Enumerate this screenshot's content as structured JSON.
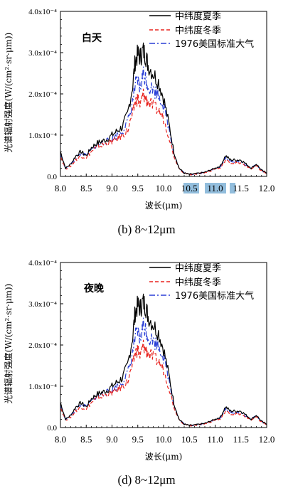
{
  "chart_data": [
    {
      "type": "line",
      "caption": "(b) 8~12μm",
      "annotation": "白天",
      "xlabel": "波长(μm)",
      "ylabel": "光谱辐射强度(W/(cm²·sr·μm))",
      "xlim": [
        8.0,
        12.0
      ],
      "ylim": [
        0,
        0.0004
      ],
      "xticks": [
        "8.0",
        "8.5",
        "9.0",
        "9.5",
        "10.0",
        "10.5",
        "11.0",
        "11.5",
        "12.0"
      ],
      "yticks": [
        "0.0",
        "1.0x10⁻⁴",
        "2.0x10⁻⁴",
        "3.0x10⁻⁴",
        "4.0x10⁻⁴"
      ],
      "legend_position": "top-right",
      "series": [
        {
          "name": "中纬度夏季",
          "color": "#000000",
          "dash": "solid",
          "x": [
            8.0,
            8.1,
            8.2,
            8.3,
            8.4,
            8.5,
            8.6,
            8.7,
            8.8,
            8.9,
            9.0,
            9.1,
            9.2,
            9.3,
            9.4,
            9.45,
            9.5,
            9.55,
            9.6,
            9.65,
            9.7,
            9.8,
            9.9,
            10.0,
            10.1,
            10.2,
            10.3,
            10.4,
            10.5,
            10.6,
            10.7,
            10.8,
            10.9,
            11.0,
            11.1,
            11.2,
            11.3,
            11.4,
            11.5,
            11.6,
            11.7,
            11.8,
            11.9,
            12.0
          ],
          "values": [
            6e-05,
            2e-05,
            3e-05,
            5e-05,
            6e-05,
            5e-05,
            7e-05,
            8e-05,
            8.5e-05,
            9e-05,
            0.0001,
            0.00011,
            0.00012,
            0.00015,
            0.00022,
            0.00028,
            0.000295,
            0.00029,
            0.000305,
            0.000295,
            0.00027,
            0.00025,
            0.00023,
            0.00019,
            0.00013,
            6e-05,
            2e-05,
            8e-06,
            5e-06,
            6e-06,
            8e-06,
            1e-05,
            1.5e-05,
            2e-05,
            2.5e-05,
            5e-05,
            4e-05,
            4e-05,
            4e-05,
            3e-05,
            2e-05,
            3e-05,
            1.5e-05,
            8e-06
          ]
        },
        {
          "name": "中纬度冬季",
          "color": "#e8231f",
          "dash": "dashed",
          "x": [
            8.0,
            8.1,
            8.2,
            8.3,
            8.4,
            8.5,
            8.6,
            8.7,
            8.8,
            8.9,
            9.0,
            9.1,
            9.2,
            9.3,
            9.4,
            9.45,
            9.5,
            9.55,
            9.6,
            9.65,
            9.7,
            9.8,
            9.9,
            10.0,
            10.1,
            10.2,
            10.3,
            10.4,
            10.5,
            10.6,
            10.7,
            10.8,
            10.9,
            11.0,
            11.1,
            11.2,
            11.3,
            11.4,
            11.5,
            11.6,
            11.7,
            11.8,
            11.9,
            12.0
          ],
          "values": [
            5e-05,
            1.8e-05,
            2.5e-05,
            4e-05,
            5e-05,
            4.5e-05,
            6e-05,
            7e-05,
            7.5e-05,
            8e-05,
            8.5e-05,
            9e-05,
            0.0001,
            0.00011,
            0.00015,
            0.00018,
            0.00019,
            0.00017,
            0.0002,
            0.00019,
            0.00018,
            0.00017,
            0.00016,
            0.00014,
            0.0001,
            5e-05,
            2e-05,
            7e-06,
            5e-06,
            5e-06,
            7e-06,
            9e-06,
            1.3e-05,
            1.8e-05,
            2e-05,
            4e-05,
            3.2e-05,
            3.3e-05,
            3.2e-05,
            2.5e-05,
            1.8e-05,
            2.5e-05,
            1.3e-05,
            7e-06
          ]
        },
        {
          "name": "1976美国标准大气",
          "color": "#2a3fd6",
          "dash": "dashdot",
          "x": [
            8.0,
            8.1,
            8.2,
            8.3,
            8.4,
            8.5,
            8.6,
            8.7,
            8.8,
            8.9,
            9.0,
            9.1,
            9.2,
            9.3,
            9.4,
            9.45,
            9.5,
            9.55,
            9.6,
            9.65,
            9.7,
            9.8,
            9.9,
            10.0,
            10.1,
            10.2,
            10.3,
            10.4,
            10.5,
            10.6,
            10.7,
            10.8,
            10.9,
            11.0,
            11.1,
            11.2,
            11.3,
            11.4,
            11.5,
            11.6,
            11.7,
            11.8,
            11.9,
            12.0
          ],
          "values": [
            5.5e-05,
            2e-05,
            2.8e-05,
            4.5e-05,
            5.5e-05,
            5e-05,
            6.5e-05,
            7.5e-05,
            8e-05,
            8.5e-05,
            9e-05,
            0.0001,
            0.00011,
            0.00013,
            0.00018,
            0.00022,
            0.00023,
            0.00021,
            0.00025,
            0.00024,
            0.00022,
            0.00021,
            0.0002,
            0.00017,
            0.00012,
            5.5e-05,
            2e-05,
            8e-06,
            5e-06,
            6e-06,
            8e-06,
            1e-05,
            1.4e-05,
            2e-05,
            2.2e-05,
            4.5e-05,
            3.6e-05,
            3.7e-05,
            3.6e-05,
            2.8e-05,
            2e-05,
            2.8e-05,
            1.4e-05,
            8e-06
          ]
        }
      ]
    },
    {
      "type": "line",
      "caption": "(d) 8~12μm",
      "annotation": "夜晚",
      "xlabel": "波长(μm)",
      "ylabel": "光谱辐射强度(W/(cm²·sr·μm))",
      "xlim": [
        8.0,
        12.0
      ],
      "ylim": [
        0,
        0.0004
      ],
      "xticks": [
        "8.0",
        "8.5",
        "9.0",
        "9.5",
        "10.0",
        "10.5",
        "11.0",
        "11.5",
        "12.0"
      ],
      "yticks": [
        "0.0",
        "1.0x10⁻⁴",
        "2.0x10⁻⁴",
        "3.0x10⁻⁴",
        "4.0x10⁻⁴"
      ],
      "legend_position": "top-right",
      "series": [
        {
          "name": "中纬度夏季",
          "color": "#000000",
          "dash": "solid",
          "x": [
            8.0,
            8.1,
            8.2,
            8.3,
            8.4,
            8.5,
            8.6,
            8.7,
            8.8,
            8.9,
            9.0,
            9.1,
            9.2,
            9.3,
            9.4,
            9.45,
            9.5,
            9.55,
            9.6,
            9.65,
            9.7,
            9.8,
            9.9,
            10.0,
            10.1,
            10.2,
            10.3,
            10.4,
            10.5,
            10.6,
            10.7,
            10.8,
            10.9,
            11.0,
            11.1,
            11.2,
            11.3,
            11.4,
            11.5,
            11.6,
            11.7,
            11.8,
            11.9,
            12.0
          ],
          "values": [
            6e-05,
            2e-05,
            3e-05,
            5e-05,
            6e-05,
            5e-05,
            7e-05,
            8e-05,
            8.5e-05,
            9e-05,
            0.0001,
            0.00011,
            0.00012,
            0.00015,
            0.00022,
            0.00028,
            0.000295,
            0.00029,
            0.000305,
            0.000295,
            0.00027,
            0.00025,
            0.00023,
            0.00019,
            0.00013,
            6e-05,
            2e-05,
            8e-06,
            5e-06,
            6e-06,
            8e-06,
            1e-05,
            1.5e-05,
            2e-05,
            2.5e-05,
            5e-05,
            4e-05,
            4e-05,
            4e-05,
            3e-05,
            2e-05,
            3e-05,
            1.5e-05,
            8e-06
          ]
        },
        {
          "name": "中纬度冬季",
          "color": "#e8231f",
          "dash": "dashed",
          "x": [
            8.0,
            8.1,
            8.2,
            8.3,
            8.4,
            8.5,
            8.6,
            8.7,
            8.8,
            8.9,
            9.0,
            9.1,
            9.2,
            9.3,
            9.4,
            9.45,
            9.5,
            9.55,
            9.6,
            9.65,
            9.7,
            9.8,
            9.9,
            10.0,
            10.1,
            10.2,
            10.3,
            10.4,
            10.5,
            10.6,
            10.7,
            10.8,
            10.9,
            11.0,
            11.1,
            11.2,
            11.3,
            11.4,
            11.5,
            11.6,
            11.7,
            11.8,
            11.9,
            12.0
          ],
          "values": [
            5e-05,
            1.8e-05,
            2.5e-05,
            4e-05,
            5e-05,
            4.5e-05,
            6e-05,
            7e-05,
            7.5e-05,
            8e-05,
            8.5e-05,
            9e-05,
            0.0001,
            0.00011,
            0.00015,
            0.00018,
            0.00019,
            0.00017,
            0.0002,
            0.00019,
            0.00018,
            0.00017,
            0.00016,
            0.00014,
            0.0001,
            5e-05,
            2e-05,
            7e-06,
            5e-06,
            5e-06,
            7e-06,
            9e-06,
            1.3e-05,
            1.8e-05,
            2e-05,
            4e-05,
            3.2e-05,
            3.3e-05,
            3.2e-05,
            2.5e-05,
            1.8e-05,
            2.5e-05,
            1.3e-05,
            7e-06
          ]
        },
        {
          "name": "1976美国标准大气",
          "color": "#2a3fd6",
          "dash": "dashdot",
          "x": [
            8.0,
            8.1,
            8.2,
            8.3,
            8.4,
            8.5,
            8.6,
            8.7,
            8.8,
            8.9,
            9.0,
            9.1,
            9.2,
            9.3,
            9.4,
            9.45,
            9.5,
            9.55,
            9.6,
            9.65,
            9.7,
            9.8,
            9.9,
            10.0,
            10.1,
            10.2,
            10.3,
            10.4,
            10.5,
            10.6,
            10.7,
            10.8,
            10.9,
            11.0,
            11.1,
            11.2,
            11.3,
            11.4,
            11.5,
            11.6,
            11.7,
            11.8,
            11.9,
            12.0
          ],
          "values": [
            5.5e-05,
            2e-05,
            2.8e-05,
            4.5e-05,
            5.5e-05,
            5e-05,
            6.5e-05,
            7.5e-05,
            8e-05,
            8.5e-05,
            9e-05,
            0.0001,
            0.00011,
            0.00013,
            0.00018,
            0.00022,
            0.00023,
            0.00021,
            0.00025,
            0.00024,
            0.00022,
            0.00021,
            0.0002,
            0.00017,
            0.00012,
            5.5e-05,
            2e-05,
            8e-06,
            5e-06,
            6e-06,
            8e-06,
            1e-05,
            1.4e-05,
            2e-05,
            2.2e-05,
            4.5e-05,
            3.6e-05,
            3.7e-05,
            3.6e-05,
            2.8e-05,
            2e-05,
            2.8e-05,
            1.4e-05,
            8e-06
          ]
        }
      ]
    }
  ]
}
